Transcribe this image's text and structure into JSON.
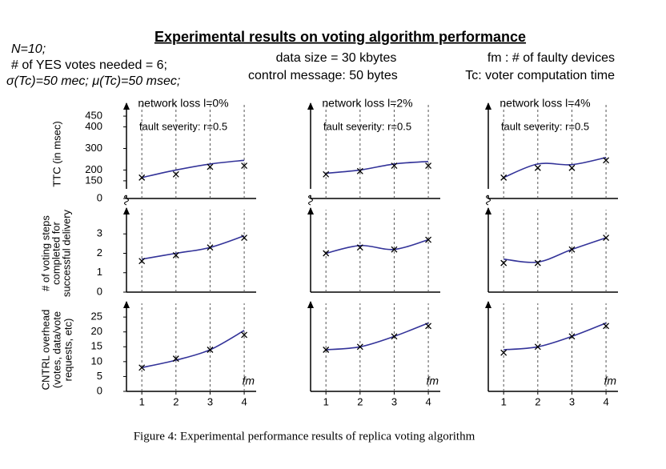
{
  "header": {
    "title": "Experimental results on voting algorithm performance",
    "left": [
      "N=10;",
      "# of YES votes needed = 6;",
      "σ(Tc)=50 mec; μ(Tc)=50 msec;"
    ],
    "center": [
      "data size = 30 kbytes",
      "control message: 50 bytes"
    ],
    "right": [
      "fm : # of faulty devices",
      "Tc: voter computation time"
    ]
  },
  "caption": "Figure 4: Experimental performance results of replica voting algorithm",
  "chart_data": [
    {
      "type": "line",
      "title": "network loss l=0%",
      "subtitle": "fault severity: r=0.5",
      "ylabel": [
        "TTC (in msec)"
      ],
      "x": [
        1,
        2,
        3,
        4
      ],
      "xlim": [
        0.55,
        4.35
      ],
      "ylim": [
        0,
        480
      ],
      "ybreak": [
        0,
        120
      ],
      "yticks": [
        0,
        150,
        200,
        300,
        400,
        450
      ],
      "drop_lines": true,
      "series": [
        {
          "color": "#333399",
          "values": [
            165,
            200,
            228,
            245
          ]
        },
        {
          "marker": "x",
          "color": "#000000",
          "values": [
            165,
            180,
            215,
            220
          ]
        }
      ]
    },
    {
      "type": "line",
      "title": "network loss l=2%",
      "subtitle": "fault severity: r=0.5",
      "x": [
        1,
        2,
        3,
        4
      ],
      "xlim": [
        0.55,
        4.35
      ],
      "ylim": [
        0,
        480
      ],
      "ybreak": [
        0,
        120
      ],
      "drop_lines": true,
      "series": [
        {
          "color": "#333399",
          "values": [
            185,
            200,
            228,
            240
          ]
        },
        {
          "marker": "x",
          "color": "#000000",
          "values": [
            180,
            195,
            220,
            220
          ]
        }
      ]
    },
    {
      "type": "line",
      "title": "network loss l=4%",
      "subtitle": "fault severity: r=0.5",
      "x": [
        1,
        2,
        3,
        4
      ],
      "xlim": [
        0.55,
        4.35
      ],
      "ylim": [
        0,
        480
      ],
      "ybreak": [
        0,
        120
      ],
      "drop_lines": true,
      "series": [
        {
          "color": "#333399",
          "values": [
            165,
            228,
            225,
            258
          ]
        },
        {
          "marker": "x",
          "color": "#000000",
          "values": [
            165,
            210,
            210,
            245
          ]
        }
      ]
    },
    {
      "type": "line",
      "ylabel": [
        "# of voting steps",
        "completed for",
        "successful delivery"
      ],
      "x": [
        1,
        2,
        3,
        4
      ],
      "xlim": [
        0.55,
        4.35
      ],
      "ylim": [
        0,
        4
      ],
      "yticks": [
        0,
        1,
        2,
        3
      ],
      "drop_lines": true,
      "series": [
        {
          "color": "#333399",
          "values": [
            1.7,
            2.0,
            2.3,
            2.9
          ]
        },
        {
          "marker": "x",
          "color": "#000000",
          "values": [
            1.6,
            1.9,
            2.3,
            2.8
          ]
        }
      ]
    },
    {
      "type": "line",
      "x": [
        1,
        2,
        3,
        4
      ],
      "xlim": [
        0.55,
        4.35
      ],
      "ylim": [
        0,
        4
      ],
      "drop_lines": true,
      "series": [
        {
          "color": "#333399",
          "values": [
            2.0,
            2.4,
            2.2,
            2.7
          ]
        },
        {
          "marker": "x",
          "color": "#000000",
          "values": [
            2.0,
            2.3,
            2.2,
            2.7
          ]
        }
      ]
    },
    {
      "type": "line",
      "x": [
        1,
        2,
        3,
        4
      ],
      "xlim": [
        0.55,
        4.35
      ],
      "ylim": [
        0,
        4
      ],
      "drop_lines": true,
      "series": [
        {
          "color": "#333399",
          "values": [
            1.7,
            1.55,
            2.2,
            2.8
          ]
        },
        {
          "marker": "x",
          "color": "#000000",
          "values": [
            1.5,
            1.5,
            2.2,
            2.8
          ]
        }
      ]
    },
    {
      "type": "line",
      "ylabel": [
        "CNTRL overhead",
        "(votes, data/vote",
        "requests, etc)"
      ],
      "xlabel": "fm",
      "x": [
        1,
        2,
        3,
        4
      ],
      "xlim": [
        0.55,
        4.35
      ],
      "ylim": [
        0,
        28
      ],
      "yticks": [
        0,
        5,
        10,
        15,
        20,
        25
      ],
      "xticks": [
        1,
        2,
        3,
        4
      ],
      "drop_lines": true,
      "series": [
        {
          "color": "#333399",
          "values": [
            8,
            10.5,
            14,
            20.5
          ]
        },
        {
          "marker": "x",
          "color": "#000000",
          "values": [
            8,
            11,
            14,
            19
          ]
        }
      ]
    },
    {
      "type": "line",
      "xlabel": "fm",
      "x": [
        1,
        2,
        3,
        4
      ],
      "xlim": [
        0.55,
        4.35
      ],
      "ylim": [
        0,
        28
      ],
      "xticks": [
        1,
        2,
        3,
        4
      ],
      "drop_lines": true,
      "series": [
        {
          "color": "#333399",
          "values": [
            14,
            15,
            18.5,
            23
          ]
        },
        {
          "marker": "x",
          "color": "#000000",
          "values": [
            14,
            15,
            18.5,
            22
          ]
        }
      ]
    },
    {
      "type": "line",
      "xlabel": "fm",
      "x": [
        1,
        2,
        3,
        4
      ],
      "xlim": [
        0.55,
        4.35
      ],
      "ylim": [
        0,
        28
      ],
      "xticks": [
        1,
        2,
        3,
        4
      ],
      "drop_lines": true,
      "series": [
        {
          "color": "#333399",
          "values": [
            14,
            15,
            18.5,
            23
          ]
        },
        {
          "marker": "x",
          "color": "#000000",
          "values": [
            13,
            15,
            18.5,
            22
          ]
        }
      ]
    }
  ]
}
